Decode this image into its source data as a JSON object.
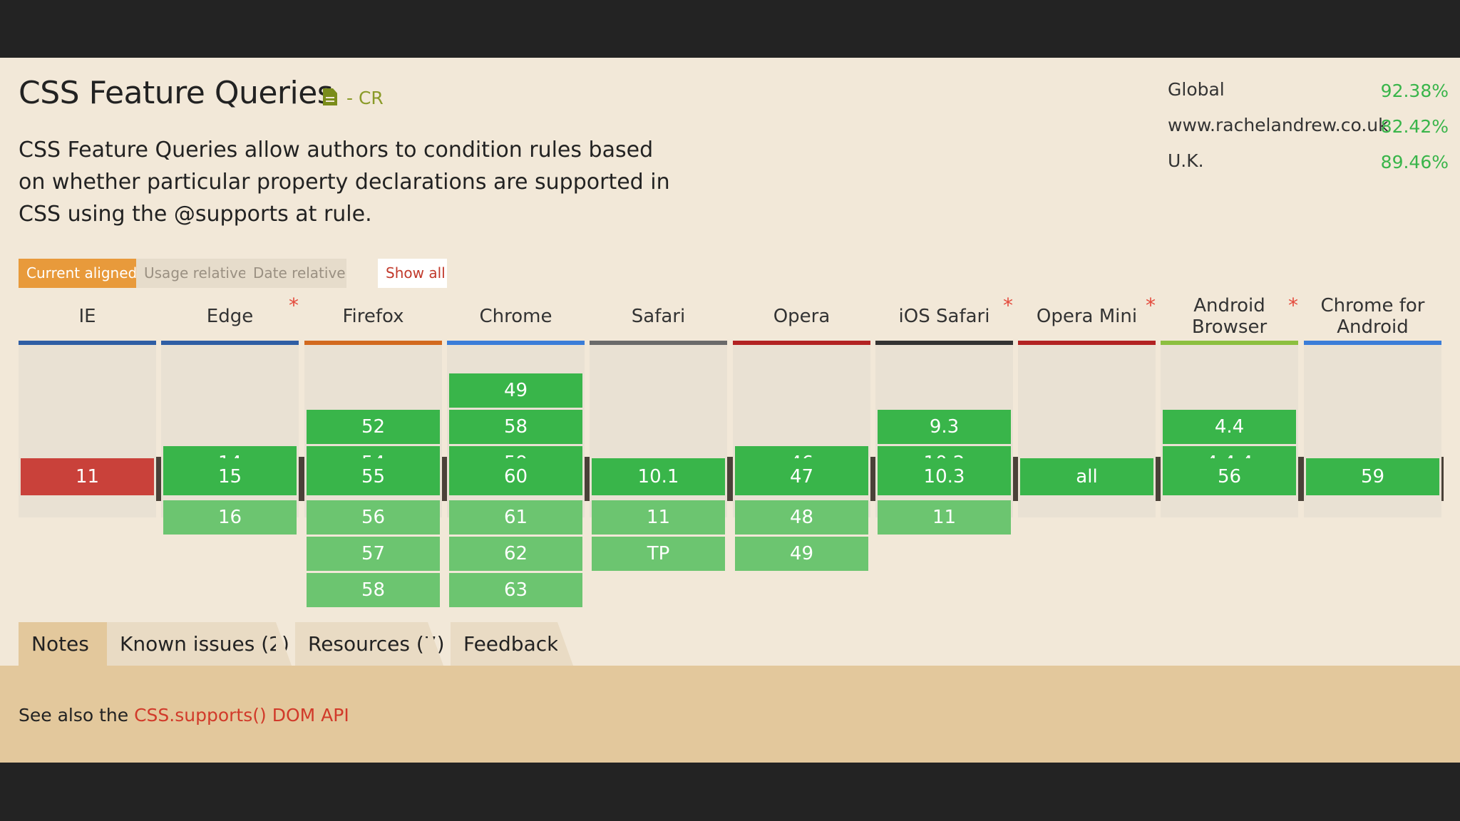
{
  "feature": {
    "title": "CSS Feature Queries",
    "status": "- CR",
    "status_icon": "document-icon",
    "description": "CSS Feature Queries allow authors to condition rules based on whether particular property declarations are supported in CSS using the @supports at rule."
  },
  "usage": [
    {
      "label": "Global",
      "value": "92.38%"
    },
    {
      "label": "www.rachelandrew.co.uk",
      "value": "82.42%"
    },
    {
      "label": "U.K.",
      "value": "89.46%"
    }
  ],
  "view_toggles": {
    "current_aligned": "Current aligned",
    "usage_relative": "Usage relative",
    "date_relative": "Date relative",
    "show_all": "Show all"
  },
  "browsers": [
    {
      "name": "IE",
      "asterisk": "",
      "color": "#2f5ea4",
      "past": [],
      "current": "11",
      "future": []
    },
    {
      "name": "Edge",
      "asterisk": "*",
      "color": "#2f5ea4",
      "past": [
        "14"
      ],
      "current": "15",
      "future": [
        "16"
      ]
    },
    {
      "name": "Firefox",
      "asterisk": "",
      "color": "#d2691e",
      "past": [
        "52",
        "54"
      ],
      "current": "55",
      "future": [
        "56",
        "57",
        "58"
      ]
    },
    {
      "name": "Chrome",
      "asterisk": "",
      "color": "#3b7dd8",
      "past": [
        "49",
        "58",
        "59"
      ],
      "current": "60",
      "future": [
        "61",
        "62",
        "63"
      ]
    },
    {
      "name": "Safari",
      "asterisk": "",
      "color": "#6a6a6a",
      "past": [],
      "current": "10.1",
      "future": [
        "11",
        "TP"
      ]
    },
    {
      "name": "Opera",
      "asterisk": "",
      "color": "#b22222",
      "past": [
        "46"
      ],
      "current": "47",
      "future": [
        "48",
        "49"
      ]
    },
    {
      "name": "iOS Safari",
      "asterisk": "*",
      "color": "#333333",
      "past": [
        "9.3",
        "10.2"
      ],
      "current": "10.3",
      "future": [
        "11"
      ]
    },
    {
      "name": "Opera Mini",
      "asterisk": "*",
      "color": "#b22222",
      "past": [],
      "current": "all",
      "future": []
    },
    {
      "name": "Android Browser",
      "asterisk": "*",
      "color": "#8cbf3f",
      "past": [
        "4.4",
        "4.4.4"
      ],
      "current": "56",
      "future": []
    },
    {
      "name": "Chrome for Android",
      "asterisk": "",
      "color": "#3b7dd8",
      "past": [],
      "current": "59",
      "future": []
    }
  ],
  "tabs": [
    {
      "label": "Notes",
      "active": true
    },
    {
      "label": "Known issues (2)",
      "active": false
    },
    {
      "label": "Resources (7)",
      "active": false
    },
    {
      "label": "Feedback",
      "active": false
    }
  ],
  "notes": {
    "prefix": "See also the ",
    "link_text": "CSS.supports() DOM API"
  },
  "colors": {
    "supported": "#39b54a",
    "future_supported": "#6cc570",
    "unsupported": "#c9413a",
    "accent": "#e89a3b"
  }
}
